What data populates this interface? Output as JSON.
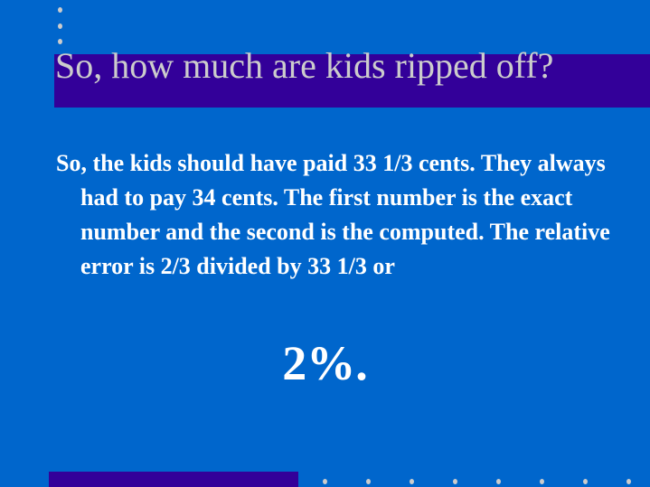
{
  "slide": {
    "title": "So, how much are kids ripped off?",
    "body": "So, the kids should have paid 33 1/3 cents. They always had to pay 34 cents. The first number is the exact number and the second is the computed. The relative error is 2/3 divided by 33 1/3 or",
    "result": "2%."
  },
  "colors": {
    "background": "#0066cc",
    "accent_bar": "#330099",
    "title_text": "#cccccc",
    "body_text": "#ffffff"
  }
}
